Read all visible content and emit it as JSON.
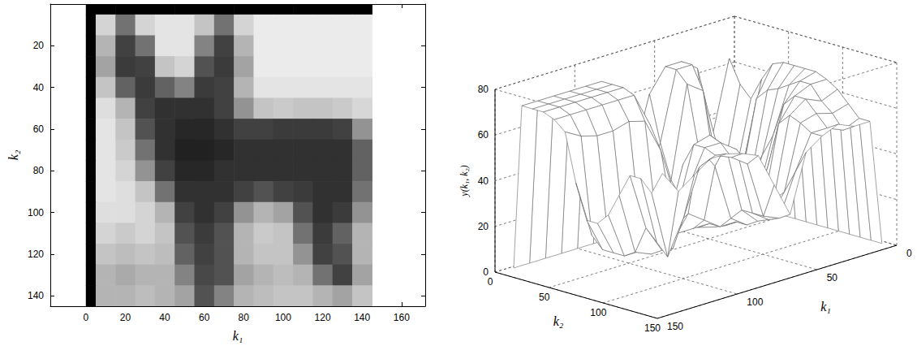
{
  "chart_data": [
    {
      "type": "heatmap",
      "x_label": "k₁",
      "y_label": "k₂",
      "xlim": [
        -18,
        172
      ],
      "xticks": [
        0,
        20,
        40,
        60,
        80,
        100,
        120,
        140,
        160
      ],
      "ylim": [
        0,
        145
      ],
      "yticks": [
        20,
        40,
        60,
        80,
        100,
        120,
        140
      ],
      "x_edges": [
        0,
        5,
        15,
        25,
        35,
        45,
        55,
        65,
        75,
        85,
        95,
        105,
        115,
        125,
        135,
        145
      ],
      "y_edges": [
        0,
        5,
        15,
        25,
        35,
        45,
        55,
        65,
        75,
        85,
        95,
        105,
        115,
        125,
        135,
        145
      ],
      "cells": [
        [
          0,
          0,
          0,
          0,
          0,
          0,
          0,
          0,
          0,
          0,
          0,
          0,
          0,
          0,
          0
        ],
        [
          0,
          65,
          35,
          65,
          70,
          70,
          60,
          35,
          65,
          72,
          72,
          72,
          72,
          72,
          72
        ],
        [
          0,
          55,
          20,
          35,
          70,
          70,
          40,
          20,
          55,
          72,
          72,
          72,
          72,
          72,
          72
        ],
        [
          0,
          50,
          18,
          20,
          60,
          65,
          25,
          18,
          50,
          72,
          72,
          72,
          72,
          72,
          72
        ],
        [
          0,
          60,
          30,
          18,
          30,
          40,
          18,
          20,
          55,
          70,
          70,
          70,
          70,
          70,
          70
        ],
        [
          0,
          68,
          55,
          20,
          15,
          15,
          15,
          20,
          45,
          60,
          62,
          60,
          60,
          62,
          66
        ],
        [
          0,
          70,
          60,
          25,
          15,
          12,
          12,
          15,
          20,
          20,
          18,
          18,
          18,
          20,
          45
        ],
        [
          0,
          70,
          62,
          35,
          15,
          10,
          10,
          12,
          15,
          15,
          15,
          15,
          15,
          15,
          30
        ],
        [
          0,
          70,
          65,
          45,
          20,
          12,
          12,
          15,
          15,
          15,
          15,
          15,
          15,
          15,
          30
        ],
        [
          0,
          70,
          68,
          60,
          35,
          15,
          15,
          15,
          20,
          25,
          20,
          18,
          15,
          15,
          35
        ],
        [
          0,
          68,
          68,
          65,
          55,
          20,
          15,
          20,
          45,
          55,
          50,
          25,
          15,
          18,
          45
        ],
        [
          0,
          65,
          62,
          65,
          60,
          25,
          18,
          25,
          55,
          62,
          60,
          35,
          18,
          30,
          55
        ],
        [
          0,
          60,
          58,
          60,
          58,
          30,
          20,
          25,
          55,
          60,
          60,
          45,
          20,
          25,
          55
        ],
        [
          0,
          55,
          52,
          55,
          55,
          40,
          22,
          25,
          50,
          55,
          58,
          55,
          35,
          20,
          50
        ],
        [
          0,
          55,
          55,
          58,
          55,
          50,
          25,
          40,
          55,
          58,
          60,
          60,
          55,
          50,
          60
        ]
      ]
    },
    {
      "type": "surface",
      "x_label": "k₁",
      "y_label": "k₂",
      "z_label": "y(k₁, k₂)",
      "xlim": [
        0,
        150
      ],
      "xticks": [
        0,
        50,
        100,
        150
      ],
      "ylim": [
        0,
        150
      ],
      "yticks": [
        0,
        50,
        100,
        150
      ],
      "zlim": [
        0,
        80
      ],
      "zticks": [
        0,
        20,
        40,
        60,
        80
      ],
      "k1": [
        2.5,
        10,
        20,
        30,
        40,
        50,
        60,
        70,
        80,
        90,
        100,
        110,
        120,
        130,
        140
      ],
      "k2": [
        2.5,
        10,
        20,
        30,
        40,
        50,
        60,
        70,
        80,
        90,
        100,
        110,
        120,
        130,
        140
      ],
      "values": [
        [
          0,
          0,
          0,
          0,
          0,
          0,
          0,
          0,
          0,
          0,
          0,
          0,
          0,
          0,
          0
        ],
        [
          0,
          65,
          35,
          65,
          70,
          70,
          60,
          35,
          65,
          72,
          72,
          72,
          72,
          72,
          72
        ],
        [
          0,
          55,
          20,
          35,
          70,
          70,
          40,
          20,
          55,
          72,
          72,
          72,
          72,
          72,
          72
        ],
        [
          0,
          50,
          18,
          20,
          60,
          65,
          25,
          18,
          50,
          72,
          72,
          72,
          72,
          72,
          72
        ],
        [
          0,
          60,
          30,
          18,
          30,
          40,
          18,
          20,
          55,
          70,
          70,
          70,
          70,
          70,
          70
        ],
        [
          0,
          68,
          55,
          20,
          15,
          15,
          15,
          20,
          45,
          60,
          62,
          60,
          60,
          62,
          66
        ],
        [
          0,
          70,
          60,
          25,
          15,
          12,
          12,
          15,
          20,
          20,
          18,
          18,
          18,
          20,
          45
        ],
        [
          0,
          70,
          62,
          35,
          15,
          10,
          10,
          12,
          15,
          15,
          15,
          15,
          15,
          15,
          30
        ],
        [
          0,
          70,
          65,
          45,
          20,
          12,
          12,
          15,
          15,
          15,
          15,
          15,
          15,
          15,
          30
        ],
        [
          0,
          70,
          68,
          60,
          35,
          15,
          15,
          15,
          20,
          25,
          20,
          18,
          15,
          15,
          35
        ],
        [
          0,
          68,
          68,
          65,
          55,
          20,
          15,
          20,
          45,
          55,
          50,
          25,
          15,
          18,
          45
        ],
        [
          0,
          65,
          62,
          65,
          60,
          25,
          18,
          25,
          55,
          62,
          60,
          35,
          18,
          30,
          55
        ],
        [
          0,
          60,
          58,
          60,
          58,
          30,
          20,
          25,
          55,
          60,
          60,
          45,
          20,
          25,
          55
        ],
        [
          0,
          55,
          52,
          55,
          55,
          40,
          22,
          25,
          50,
          55,
          58,
          55,
          35,
          20,
          50
        ],
        [
          0,
          55,
          55,
          58,
          55,
          50,
          25,
          40,
          55,
          58,
          60,
          60,
          55,
          50,
          60
        ]
      ]
    }
  ]
}
